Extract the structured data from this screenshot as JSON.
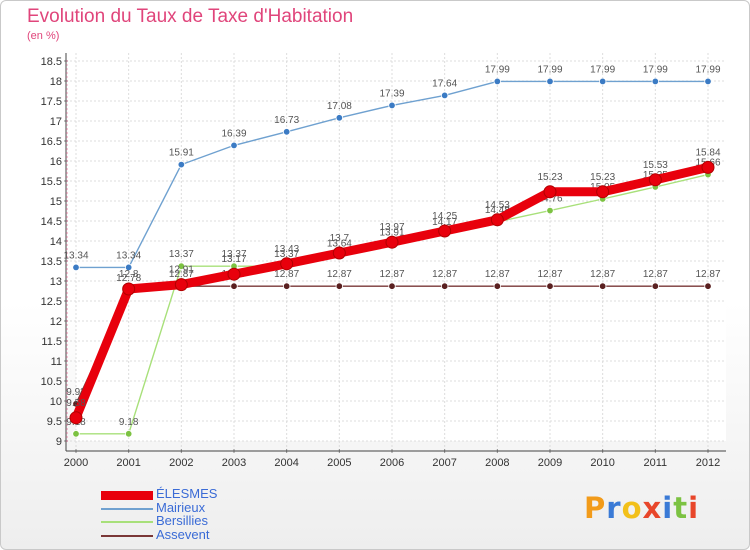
{
  "title": "Evolution du Taux de Taxe d'Habitation",
  "subtitle": "(en %)",
  "logo": {
    "text": "Proxiti",
    "letters": [
      "P",
      "r",
      "o",
      "x",
      "i",
      "t",
      "i"
    ],
    "colors": [
      "#f29b1a",
      "#3a7ad6",
      "#f2c01a",
      "#e8462a",
      "#3a7ad6",
      "#7cc242",
      "#e8462a"
    ]
  },
  "chart_data": {
    "type": "line",
    "x": [
      2000,
      2001,
      2002,
      2003,
      2004,
      2005,
      2006,
      2007,
      2008,
      2009,
      2010,
      2011,
      2012
    ],
    "ylim": [
      9,
      18.5
    ],
    "yticks": [
      9,
      9.5,
      10,
      10.5,
      11,
      11.5,
      12,
      12.5,
      13,
      13.5,
      14,
      14.5,
      15,
      15.5,
      16,
      16.5,
      17,
      17.5,
      18,
      18.5
    ],
    "grid": true,
    "legend_position": "bottom-left",
    "series": [
      {
        "name": "ÉLESMES",
        "color": "#e8000c",
        "marker": "#e8000c",
        "values": [
          9.58,
          12.8,
          12.91,
          13.17,
          13.43,
          13.7,
          13.97,
          14.25,
          14.53,
          15.23,
          15.23,
          15.53,
          15.84
        ]
      },
      {
        "name": "Mairieux",
        "color": "#6fa1d0",
        "marker": "#3b7bc4",
        "values": [
          13.34,
          13.34,
          15.91,
          16.39,
          16.73,
          17.08,
          17.39,
          17.64,
          17.99,
          17.99,
          17.99,
          17.99,
          17.99
        ]
      },
      {
        "name": "Bersillies",
        "color": "#a8e07a",
        "marker": "#7cc242",
        "values": [
          9.18,
          9.18,
          13.37,
          13.37,
          13.37,
          13.64,
          13.91,
          14.17,
          14.48,
          14.76,
          15.05,
          15.35,
          15.66
        ]
      },
      {
        "name": "Assevent",
        "color": "#7a3737",
        "marker": "#5a2020",
        "values": [
          9.93,
          12.78,
          12.87,
          12.87,
          12.87,
          12.87,
          12.87,
          12.87,
          12.87,
          12.87,
          12.87,
          12.87,
          12.87
        ]
      }
    ]
  }
}
